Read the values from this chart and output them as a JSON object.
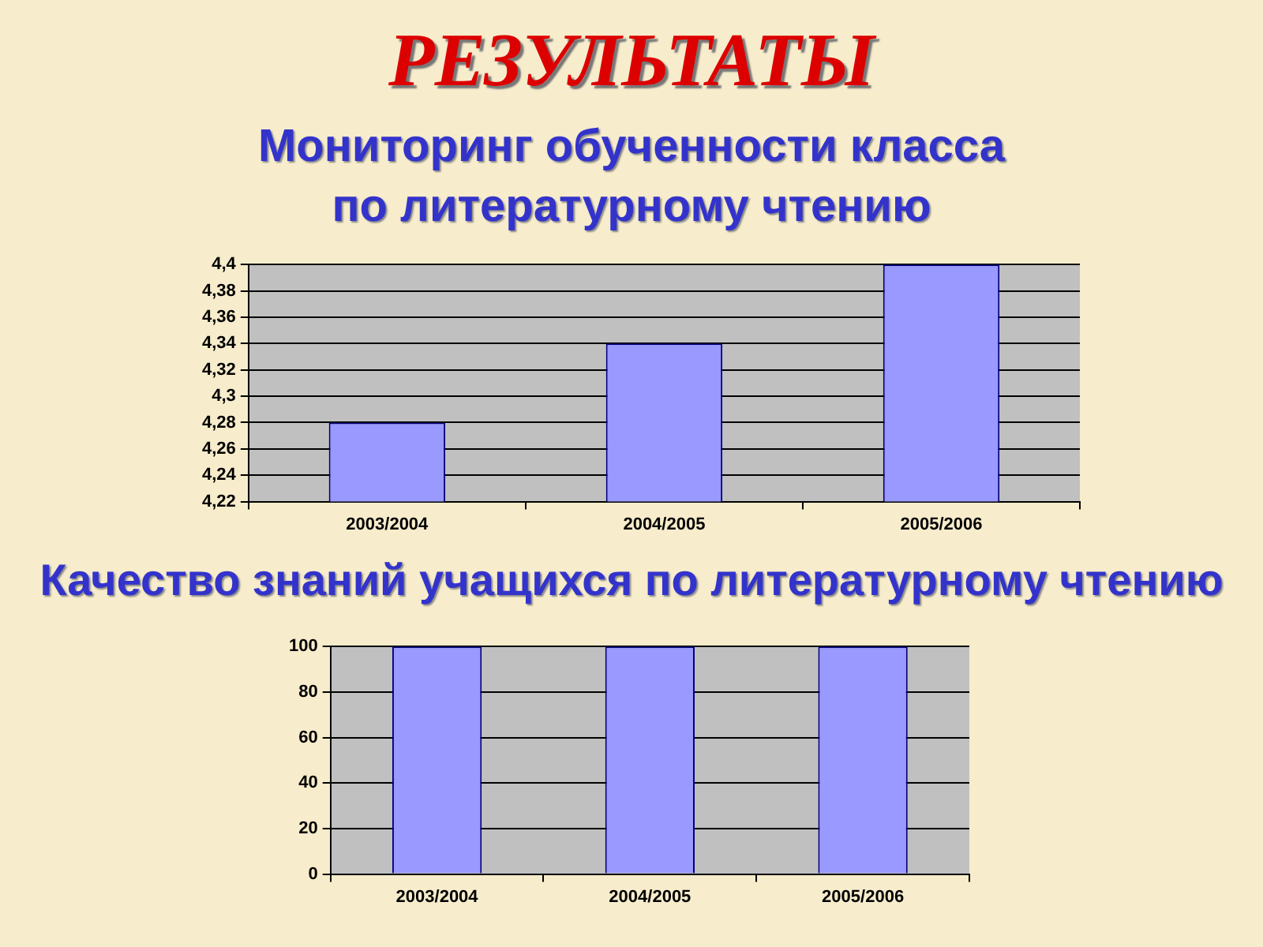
{
  "chart_data": [
    {
      "type": "bar",
      "title": "РЕЗУЛЬТАТЫ",
      "subtitle": "Мониторинг обученности класса по литературному чтению",
      "categories": [
        "2003/2004",
        "2004/2005",
        "2005/2006"
      ],
      "values": [
        4.28,
        4.34,
        4.4
      ],
      "color": "#9999ff",
      "ylim": [
        4.22,
        4.4
      ],
      "yticks": [
        {
          "value": 4.22,
          "label": "4,22"
        },
        {
          "value": 4.24,
          "label": "4,24"
        },
        {
          "value": 4.26,
          "label": "4,26"
        },
        {
          "value": 4.28,
          "label": "4,28"
        },
        {
          "value": 4.3,
          "label": "4,3"
        },
        {
          "value": 4.32,
          "label": "4,32"
        },
        {
          "value": 4.34,
          "label": "4,34"
        },
        {
          "value": 4.36,
          "label": "4,36"
        },
        {
          "value": 4.38,
          "label": "4,38"
        },
        {
          "value": 4.4,
          "label": "4,4"
        }
      ],
      "grid": "y"
    },
    {
      "type": "bar",
      "title": "Качество знаний учащихся по литературному чтению",
      "categories": [
        "2003/2004",
        "2004/2005",
        "2005/2006"
      ],
      "values": [
        100,
        100,
        100
      ],
      "color": "#9999ff",
      "ylim": [
        0,
        100
      ],
      "yticks": [
        0,
        20,
        40,
        60,
        80,
        100
      ],
      "grid": "y"
    }
  ]
}
